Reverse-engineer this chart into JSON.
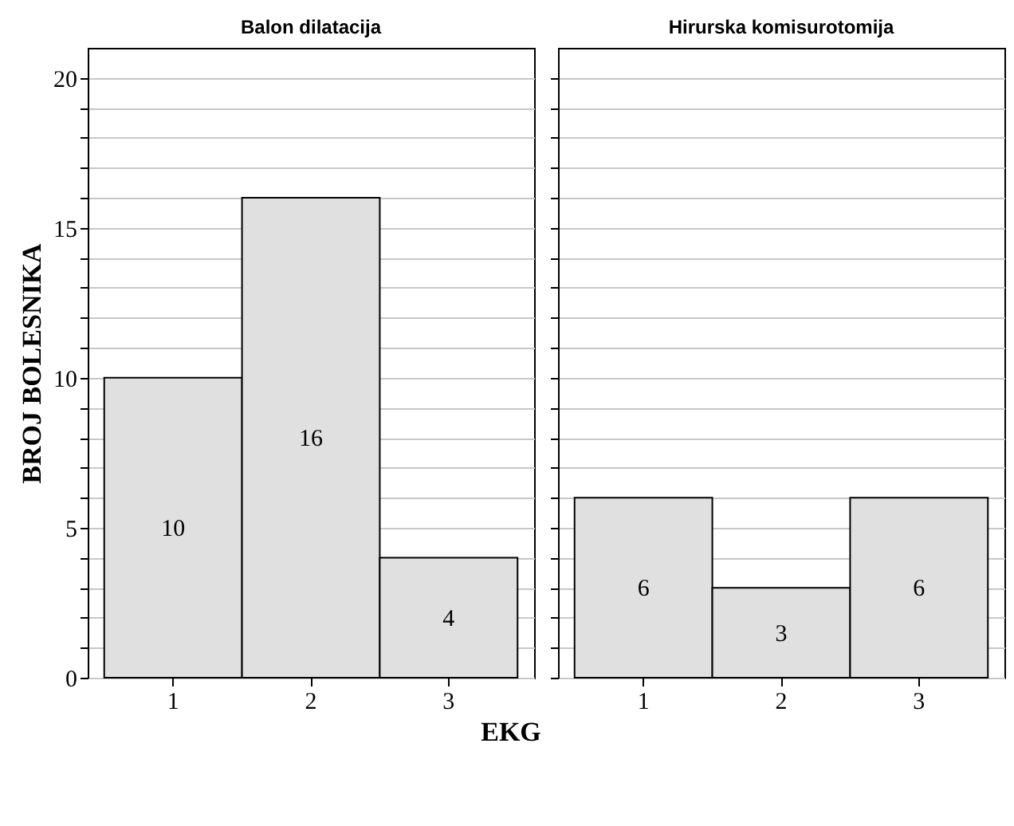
{
  "chart_data": [
    {
      "type": "bar",
      "title": "Balon dilatacija",
      "xlabel": "EKG",
      "ylabel": "BROJ BOLESNIKA",
      "categories": [
        "1",
        "2",
        "3"
      ],
      "values": [
        10,
        16,
        4
      ],
      "color": "#e0e0e0",
      "data_labels": true,
      "ylim": [
        0,
        21
      ],
      "yticks": [
        0,
        {
          "value": 1,
          "label": null
        },
        {
          "value": 2,
          "label": null
        },
        {
          "value": 3,
          "label": null
        },
        {
          "value": 4,
          "label": null
        },
        5,
        {
          "value": 6,
          "label": null
        },
        {
          "value": 7,
          "label": null
        },
        {
          "value": 8,
          "label": null
        },
        {
          "value": 9,
          "label": null
        },
        10,
        {
          "value": 11,
          "label": null
        },
        {
          "value": 12,
          "label": null
        },
        {
          "value": 13,
          "label": null
        },
        {
          "value": 14,
          "label": null
        },
        15,
        {
          "value": 16,
          "label": null
        },
        {
          "value": 17,
          "label": null
        },
        {
          "value": 18,
          "label": null
        },
        {
          "value": 19,
          "label": null
        },
        20
      ],
      "grid": "y"
    },
    {
      "type": "bar",
      "title": "Hirurska komisurotomija",
      "categories": [
        "1",
        "2",
        "3"
      ],
      "values": [
        6,
        3,
        6
      ],
      "color": "#e0e0e0",
      "data_labels": true,
      "ylim": [
        0,
        21
      ],
      "yticks": [
        0,
        {
          "value": 1,
          "label": null
        },
        {
          "value": 2,
          "label": null
        },
        {
          "value": 3,
          "label": null
        },
        {
          "value": 4,
          "label": null
        },
        5,
        {
          "value": 6,
          "label": null
        },
        {
          "value": 7,
          "label": null
        },
        {
          "value": 8,
          "label": null
        },
        {
          "value": 9,
          "label": null
        },
        10,
        {
          "value": 11,
          "label": null
        },
        {
          "value": 12,
          "label": null
        },
        {
          "value": 13,
          "label": null
        },
        {
          "value": 14,
          "label": null
        },
        15,
        {
          "value": 16,
          "label": null
        },
        {
          "value": 17,
          "label": null
        },
        {
          "value": 18,
          "label": null
        },
        {
          "value": 19,
          "label": null
        },
        20
      ],
      "grid": "y",
      "tick_labels": "x"
    }
  ]
}
